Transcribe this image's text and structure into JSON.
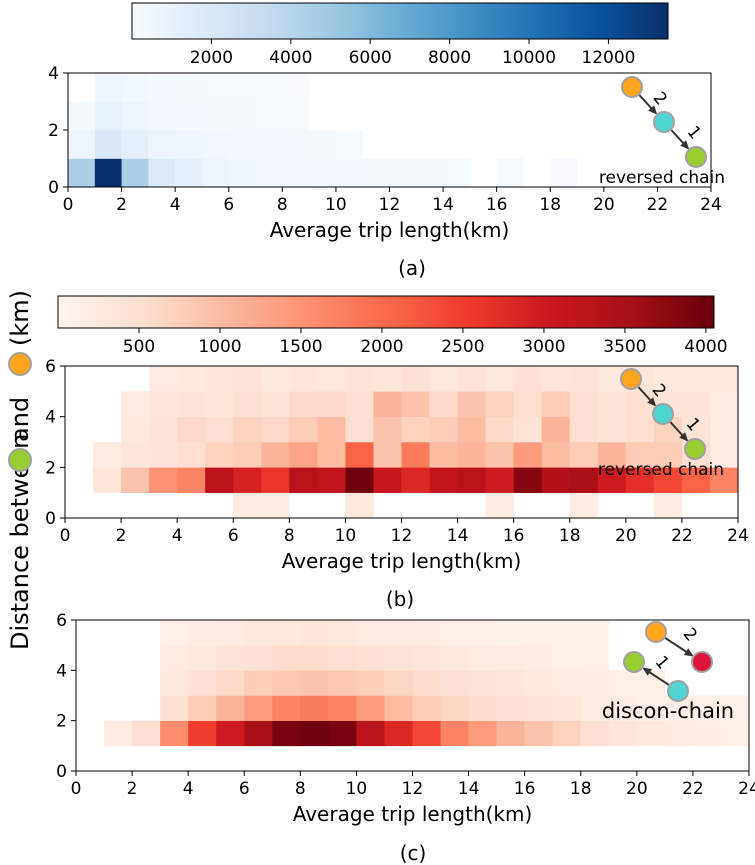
{
  "colors": {
    "orange_node": "#ffa41b",
    "cyan_node": "#4fd6d2",
    "green_node": "#9acd32",
    "red_node": "#dc143c",
    "node_stroke": "#a0a0a0",
    "blues_scale": [
      "#f7fbff",
      "#deebf7",
      "#c6dbef",
      "#9ecae1",
      "#6baed6",
      "#4292c6",
      "#2171b5",
      "#08519c",
      "#08306b"
    ],
    "reds_scale": [
      "#fff5f0",
      "#fee0d2",
      "#fcbba1",
      "#fc9272",
      "#fb6a4a",
      "#ef3b2c",
      "#cb181d",
      "#a50f15",
      "#67000d"
    ]
  },
  "y_label": {
    "prefix": "Distance between",
    "middle": "and",
    "suffix": "(km)",
    "icons": [
      "green-node-icon",
      "orange-node-icon"
    ]
  },
  "chart_data": [
    {
      "type": "heatmap",
      "panel_label": "(a)",
      "colormap": "Blues",
      "colorbar_ticks": [
        "2000",
        "4000",
        "6000",
        "8000",
        "10000",
        "12000"
      ],
      "colorbar_range": [
        0,
        13500
      ],
      "xlabel": "Average trip length(km)",
      "xlim": [
        0,
        24
      ],
      "ylim": [
        0,
        4
      ],
      "x_ticks": [
        "0",
        "2",
        "4",
        "6",
        "8",
        "10",
        "12",
        "14",
        "16",
        "18",
        "20",
        "22",
        "24"
      ],
      "y_ticks": [
        "0",
        "2",
        "4"
      ],
      "y_tick_values": [
        0,
        2,
        4
      ],
      "bin_height": 1,
      "motif": {
        "kind": "chain",
        "label": "reversed chain",
        "edge_labels": [
          "2",
          "1"
        ]
      },
      "cells": [
        [
          0,
          0,
          4500
        ],
        [
          1,
          0,
          13400
        ],
        [
          2,
          0,
          4500
        ],
        [
          3,
          0,
          1800
        ],
        [
          4,
          0,
          1300
        ],
        [
          5,
          0,
          700
        ],
        [
          6,
          0,
          500
        ],
        [
          7,
          0,
          400
        ],
        [
          8,
          0,
          350
        ],
        [
          9,
          0,
          300
        ],
        [
          10,
          0,
          250
        ],
        [
          11,
          0,
          220
        ],
        [
          12,
          0,
          200
        ],
        [
          13,
          0,
          180
        ],
        [
          14,
          0,
          150
        ],
        [
          16,
          0,
          130
        ],
        [
          18,
          0,
          100
        ],
        [
          0,
          1,
          700
        ],
        [
          1,
          1,
          2000
        ],
        [
          2,
          1,
          1300
        ],
        [
          3,
          1,
          700
        ],
        [
          4,
          1,
          500
        ],
        [
          5,
          1,
          400
        ],
        [
          6,
          1,
          350
        ],
        [
          7,
          1,
          300
        ],
        [
          8,
          1,
          250
        ],
        [
          9,
          1,
          200
        ],
        [
          10,
          1,
          150
        ],
        [
          0,
          2,
          200
        ],
        [
          1,
          2,
          1000
        ],
        [
          2,
          2,
          700
        ],
        [
          3,
          2,
          350
        ],
        [
          4,
          2,
          250
        ],
        [
          5,
          2,
          200
        ],
        [
          6,
          2,
          180
        ],
        [
          7,
          2,
          150
        ],
        [
          8,
          2,
          120
        ],
        [
          1,
          3,
          600
        ],
        [
          2,
          3,
          450
        ],
        [
          3,
          3,
          250
        ],
        [
          4,
          3,
          180
        ],
        [
          5,
          3,
          150
        ],
        [
          6,
          3,
          120
        ],
        [
          7,
          3,
          110
        ],
        [
          8,
          3,
          100
        ]
      ]
    },
    {
      "type": "heatmap",
      "panel_label": "(b)",
      "colormap": "Reds",
      "colorbar_ticks": [
        "500",
        "1000",
        "1500",
        "2000",
        "2500",
        "3000",
        "3500",
        "4000"
      ],
      "colorbar_range": [
        0,
        4050
      ],
      "xlabel": "Average trip length(km)",
      "xlim": [
        0,
        24
      ],
      "ylim": [
        0,
        6
      ],
      "x_ticks": [
        "0",
        "2",
        "4",
        "6",
        "8",
        "10",
        "12",
        "14",
        "16",
        "18",
        "20",
        "22",
        "24"
      ],
      "y_ticks": [
        "0",
        "2",
        "4",
        "6"
      ],
      "y_tick_values": [
        0,
        2,
        4,
        6
      ],
      "bin_height": 1,
      "motif": {
        "kind": "chain",
        "label": "reversed chain",
        "edge_labels": [
          "2",
          "1"
        ]
      },
      "cells": [
        [
          6,
          0,
          250
        ],
        [
          7,
          0,
          200
        ],
        [
          10,
          0,
          300
        ],
        [
          15,
          0,
          200
        ],
        [
          18,
          0,
          200
        ],
        [
          21,
          0,
          250
        ],
        [
          1,
          1,
          350
        ],
        [
          2,
          1,
          900
        ],
        [
          3,
          1,
          1500
        ],
        [
          4,
          1,
          1700
        ],
        [
          5,
          1,
          3300
        ],
        [
          6,
          1,
          2900
        ],
        [
          7,
          1,
          2600
        ],
        [
          8,
          1,
          3300
        ],
        [
          9,
          1,
          3200
        ],
        [
          10,
          1,
          4000
        ],
        [
          11,
          1,
          3100
        ],
        [
          12,
          1,
          2800
        ],
        [
          13,
          1,
          3200
        ],
        [
          14,
          1,
          3300
        ],
        [
          15,
          1,
          3000
        ],
        [
          16,
          1,
          3800
        ],
        [
          17,
          1,
          3400
        ],
        [
          18,
          1,
          3500
        ],
        [
          19,
          1,
          3000
        ],
        [
          20,
          1,
          2700
        ],
        [
          21,
          1,
          2400
        ],
        [
          22,
          1,
          2100
        ],
        [
          23,
          1,
          1700
        ],
        [
          1,
          2,
          250
        ],
        [
          2,
          2,
          350
        ],
        [
          3,
          2,
          400
        ],
        [
          4,
          2,
          500
        ],
        [
          5,
          2,
          700
        ],
        [
          6,
          2,
          800
        ],
        [
          7,
          2,
          1100
        ],
        [
          8,
          2,
          1300
        ],
        [
          9,
          2,
          1000
        ],
        [
          10,
          2,
          2100
        ],
        [
          11,
          2,
          900
        ],
        [
          12,
          2,
          1800
        ],
        [
          13,
          2,
          1000
        ],
        [
          14,
          2,
          1100
        ],
        [
          15,
          2,
          900
        ],
        [
          16,
          2,
          1400
        ],
        [
          17,
          2,
          1000
        ],
        [
          18,
          2,
          800
        ],
        [
          19,
          2,
          1100
        ],
        [
          20,
          2,
          800
        ],
        [
          21,
          2,
          800
        ],
        [
          22,
          2,
          500
        ],
        [
          23,
          2,
          200
        ],
        [
          2,
          3,
          300
        ],
        [
          3,
          3,
          400
        ],
        [
          4,
          3,
          600
        ],
        [
          5,
          3,
          500
        ],
        [
          6,
          3,
          700
        ],
        [
          7,
          3,
          600
        ],
        [
          8,
          3,
          800
        ],
        [
          9,
          3,
          1000
        ],
        [
          10,
          3,
          500
        ],
        [
          11,
          3,
          900
        ],
        [
          12,
          3,
          700
        ],
        [
          13,
          3,
          800
        ],
        [
          14,
          3,
          1000
        ],
        [
          15,
          3,
          600
        ],
        [
          16,
          3,
          400
        ],
        [
          17,
          3,
          1100
        ],
        [
          18,
          3,
          500
        ],
        [
          19,
          3,
          400
        ],
        [
          20,
          3,
          500
        ],
        [
          21,
          3,
          700
        ],
        [
          22,
          3,
          400
        ],
        [
          23,
          3,
          200
        ],
        [
          2,
          4,
          250
        ],
        [
          3,
          4,
          350
        ],
        [
          4,
          4,
          400
        ],
        [
          5,
          4,
          350
        ],
        [
          6,
          4,
          500
        ],
        [
          7,
          4,
          400
        ],
        [
          8,
          4,
          600
        ],
        [
          9,
          4,
          600
        ],
        [
          10,
          4,
          500
        ],
        [
          11,
          4,
          1100
        ],
        [
          12,
          4,
          900
        ],
        [
          13,
          4,
          600
        ],
        [
          14,
          4,
          900
        ],
        [
          15,
          4,
          700
        ],
        [
          16,
          4,
          500
        ],
        [
          17,
          4,
          800
        ],
        [
          18,
          4,
          500
        ],
        [
          19,
          4,
          400
        ],
        [
          20,
          4,
          500
        ],
        [
          21,
          4,
          400
        ],
        [
          22,
          4,
          400
        ],
        [
          23,
          4,
          250
        ],
        [
          3,
          5,
          250
        ],
        [
          4,
          5,
          300
        ],
        [
          5,
          5,
          350
        ],
        [
          6,
          5,
          400
        ],
        [
          7,
          5,
          300
        ],
        [
          8,
          5,
          350
        ],
        [
          9,
          5,
          300
        ],
        [
          10,
          5,
          400
        ],
        [
          11,
          5,
          350
        ],
        [
          12,
          5,
          450
        ],
        [
          13,
          5,
          300
        ],
        [
          14,
          5,
          400
        ],
        [
          15,
          5,
          300
        ],
        [
          16,
          5,
          450
        ],
        [
          17,
          5,
          350
        ],
        [
          18,
          5,
          400
        ],
        [
          19,
          5,
          300
        ],
        [
          20,
          5,
          350
        ],
        [
          21,
          5,
          300
        ],
        [
          22,
          5,
          300
        ],
        [
          23,
          5,
          300
        ]
      ]
    },
    {
      "type": "heatmap",
      "panel_label": "(c)",
      "colormap": "Reds",
      "colorbar_range": [
        0,
        4050
      ],
      "xlabel": "Average trip length(km)",
      "xlim": [
        0,
        24
      ],
      "ylim": [
        0,
        6
      ],
      "x_ticks": [
        "0",
        "2",
        "4",
        "6",
        "8",
        "10",
        "12",
        "14",
        "16",
        "18",
        "20",
        "22",
        "24"
      ],
      "y_ticks": [
        "0",
        "2",
        "4",
        "6"
      ],
      "y_tick_values": [
        0,
        2,
        4,
        6
      ],
      "bin_height": 1,
      "motif": {
        "kind": "discon",
        "label": "discon-chain",
        "edge_labels": [
          "2",
          "1"
        ]
      },
      "cells": [
        [
          1,
          1,
          200
        ],
        [
          2,
          1,
          500
        ],
        [
          3,
          1,
          1600
        ],
        [
          4,
          1,
          2500
        ],
        [
          5,
          1,
          3000
        ],
        [
          6,
          1,
          3500
        ],
        [
          7,
          1,
          3900
        ],
        [
          8,
          1,
          4000
        ],
        [
          9,
          1,
          3900
        ],
        [
          10,
          1,
          3300
        ],
        [
          11,
          1,
          2800
        ],
        [
          12,
          1,
          2400
        ],
        [
          13,
          1,
          1700
        ],
        [
          14,
          1,
          1400
        ],
        [
          15,
          1,
          1100
        ],
        [
          16,
          1,
          900
        ],
        [
          17,
          1,
          700
        ],
        [
          18,
          1,
          500
        ],
        [
          19,
          1,
          350
        ],
        [
          20,
          1,
          300
        ],
        [
          21,
          1,
          250
        ],
        [
          22,
          1,
          200
        ],
        [
          23,
          1,
          150
        ],
        [
          3,
          2,
          500
        ],
        [
          4,
          2,
          800
        ],
        [
          5,
          2,
          1100
        ],
        [
          6,
          2,
          1400
        ],
        [
          7,
          2,
          1700
        ],
        [
          8,
          2,
          1800
        ],
        [
          9,
          2,
          1700
        ],
        [
          10,
          2,
          1400
        ],
        [
          11,
          2,
          1000
        ],
        [
          12,
          2,
          800
        ],
        [
          13,
          2,
          650
        ],
        [
          14,
          2,
          550
        ],
        [
          15,
          2,
          450
        ],
        [
          16,
          2,
          400
        ],
        [
          17,
          2,
          350
        ],
        [
          18,
          2,
          250
        ],
        [
          19,
          2,
          200
        ],
        [
          20,
          2,
          150
        ],
        [
          21,
          2,
          150
        ],
        [
          22,
          2,
          120
        ],
        [
          23,
          2,
          100
        ],
        [
          3,
          3,
          300
        ],
        [
          4,
          3,
          450
        ],
        [
          5,
          3,
          600
        ],
        [
          6,
          3,
          750
        ],
        [
          7,
          3,
          850
        ],
        [
          8,
          3,
          900
        ],
        [
          9,
          3,
          850
        ],
        [
          10,
          3,
          750
        ],
        [
          11,
          3,
          650
        ],
        [
          12,
          3,
          550
        ],
        [
          13,
          3,
          450
        ],
        [
          14,
          3,
          400
        ],
        [
          15,
          3,
          350
        ],
        [
          16,
          3,
          300
        ],
        [
          17,
          3,
          250
        ],
        [
          18,
          3,
          200
        ],
        [
          19,
          3,
          150
        ],
        [
          20,
          3,
          150
        ],
        [
          3,
          4,
          250
        ],
        [
          4,
          4,
          300
        ],
        [
          5,
          4,
          400
        ],
        [
          6,
          4,
          450
        ],
        [
          7,
          4,
          550
        ],
        [
          8,
          4,
          550
        ],
        [
          9,
          4,
          500
        ],
        [
          10,
          4,
          450
        ],
        [
          11,
          4,
          400
        ],
        [
          12,
          4,
          350
        ],
        [
          13,
          4,
          300
        ],
        [
          14,
          4,
          250
        ],
        [
          15,
          4,
          250
        ],
        [
          16,
          4,
          200
        ],
        [
          17,
          4,
          150
        ],
        [
          18,
          4,
          150
        ],
        [
          3,
          5,
          150
        ],
        [
          4,
          5,
          200
        ],
        [
          5,
          5,
          250
        ],
        [
          6,
          5,
          300
        ],
        [
          7,
          5,
          300
        ],
        [
          8,
          5,
          350
        ],
        [
          9,
          5,
          300
        ],
        [
          10,
          5,
          250
        ],
        [
          11,
          5,
          250
        ],
        [
          12,
          5,
          200
        ],
        [
          13,
          5,
          150
        ],
        [
          14,
          5,
          150
        ],
        [
          15,
          5,
          120
        ],
        [
          16,
          5,
          100
        ],
        [
          17,
          5,
          100
        ],
        [
          18,
          5,
          100
        ]
      ]
    }
  ]
}
